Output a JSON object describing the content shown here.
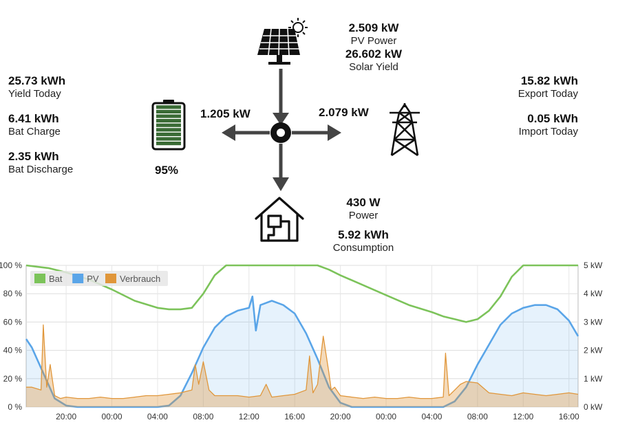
{
  "solar": {
    "power_value": "2.509 kW",
    "power_label": "PV Power",
    "yield_value": "26.602 kW",
    "yield_label": "Solar Yield"
  },
  "stats_left": [
    {
      "value": "25.73 kWh",
      "label": "Yield Today"
    },
    {
      "value": "6.41 kWh",
      "label": "Bat Charge"
    },
    {
      "value": "2.35 kWh",
      "label": "Bat Discharge"
    }
  ],
  "stats_right": [
    {
      "value": "15.82 kWh",
      "label": "Export Today"
    },
    {
      "value": "0.05 kWh",
      "label": "Import Today"
    }
  ],
  "battery": {
    "flow": "1.205 kW",
    "soc": "95%",
    "soc_fraction": 0.95,
    "color": "#3a6b35"
  },
  "grid": {
    "flow": "2.079 kW"
  },
  "house": {
    "power_value": "430 W",
    "power_label": "Power",
    "consumption_value": "5.92 kWh",
    "consumption_label": "Consumption"
  },
  "chart_data": {
    "type": "line",
    "x_ticks": [
      "20:00",
      "00:00",
      "04:00",
      "08:00",
      "12:00",
      "16:00",
      "20:00",
      "00:00",
      "04:00",
      "08:00",
      "12:00",
      "16:00"
    ],
    "y_left_ticks": [
      "0 %",
      "20 %",
      "40 %",
      "60 %",
      "80 %",
      "100 %"
    ],
    "y_right_ticks": [
      "0 kW",
      "1 kW",
      "2 kW",
      "3 kW",
      "4 kW",
      "5 kW"
    ],
    "y_left_range": [
      0,
      100
    ],
    "y_right_range": [
      0,
      5
    ],
    "x_range_hours": [
      16.5,
      64.8
    ],
    "legend_placement": "top-left",
    "grid": true,
    "series": [
      {
        "name": "Bat",
        "color": "#7cc35a",
        "axis": "left",
        "x": [
          16.5,
          17.5,
          18.5,
          20,
          22,
          24,
          26,
          28,
          29,
          30,
          31,
          32,
          33,
          34,
          35,
          36,
          38,
          40,
          41,
          42,
          43,
          44,
          46,
          48,
          50,
          52,
          53,
          54,
          55,
          56,
          57,
          58,
          59,
          60,
          61,
          62,
          63,
          64.8
        ],
        "y": [
          100,
          99,
          98,
          95,
          90,
          83,
          75,
          70,
          69,
          69,
          70,
          80,
          93,
          100,
          100,
          100,
          100,
          100,
          100,
          100,
          97,
          93,
          86,
          79,
          72,
          67,
          64,
          62,
          60,
          62,
          68,
          78,
          92,
          100,
          100,
          100,
          100,
          100
        ]
      },
      {
        "name": "PV",
        "color": "#5aa5e8",
        "axis": "right",
        "x": [
          16.5,
          17,
          18,
          19,
          20,
          21,
          22,
          24,
          28,
          29,
          30,
          31,
          32,
          33,
          34,
          35,
          36,
          36.3,
          36.6,
          37,
          38,
          39,
          40,
          41,
          42,
          43,
          44,
          45,
          46,
          48,
          52,
          53,
          54,
          55,
          56,
          57,
          58,
          59,
          60,
          61,
          62,
          63,
          64,
          64.8
        ],
        "y": [
          2.4,
          2.1,
          1.2,
          0.3,
          0.05,
          0,
          0,
          0,
          0,
          0.05,
          0.4,
          1.2,
          2.1,
          2.8,
          3.2,
          3.4,
          3.5,
          3.9,
          2.7,
          3.6,
          3.75,
          3.6,
          3.3,
          2.6,
          1.7,
          0.7,
          0.15,
          0,
          0,
          0,
          0,
          0,
          0.2,
          0.7,
          1.5,
          2.2,
          2.9,
          3.3,
          3.5,
          3.6,
          3.6,
          3.45,
          3.05,
          2.5
        ]
      },
      {
        "name": "Verbrauch",
        "color": "#e0963a",
        "axis": "right",
        "x": [
          16.5,
          17,
          17.8,
          18,
          18.3,
          18.6,
          19,
          19.5,
          20,
          21,
          22,
          23,
          24,
          25,
          26,
          27,
          28,
          29,
          30,
          31,
          31.3,
          31.6,
          32,
          32.5,
          33,
          33.5,
          34,
          35,
          36,
          37,
          37.5,
          38,
          39,
          40,
          41,
          41.3,
          41.6,
          42,
          42.5,
          43,
          43.2,
          43.5,
          44,
          45,
          46,
          47,
          48,
          49,
          50,
          51,
          52,
          53,
          53.2,
          53.5,
          54,
          54.5,
          55,
          56,
          57,
          58,
          59,
          60,
          61,
          62,
          63,
          64,
          64.8
        ],
        "y": [
          0.7,
          0.7,
          0.6,
          2.9,
          0.7,
          1.5,
          0.4,
          0.3,
          0.35,
          0.3,
          0.3,
          0.35,
          0.3,
          0.3,
          0.35,
          0.4,
          0.4,
          0.45,
          0.5,
          0.6,
          1.5,
          0.8,
          1.6,
          0.6,
          0.4,
          0.4,
          0.4,
          0.4,
          0.35,
          0.4,
          0.8,
          0.35,
          0.4,
          0.45,
          0.6,
          1.8,
          0.5,
          0.8,
          2.5,
          1.2,
          0.6,
          0.7,
          0.4,
          0.35,
          0.3,
          0.35,
          0.3,
          0.3,
          0.35,
          0.3,
          0.3,
          0.35,
          1.9,
          0.4,
          0.6,
          0.8,
          0.9,
          0.85,
          0.5,
          0.45,
          0.4,
          0.5,
          0.45,
          0.4,
          0.45,
          0.5,
          0.45
        ]
      }
    ]
  }
}
